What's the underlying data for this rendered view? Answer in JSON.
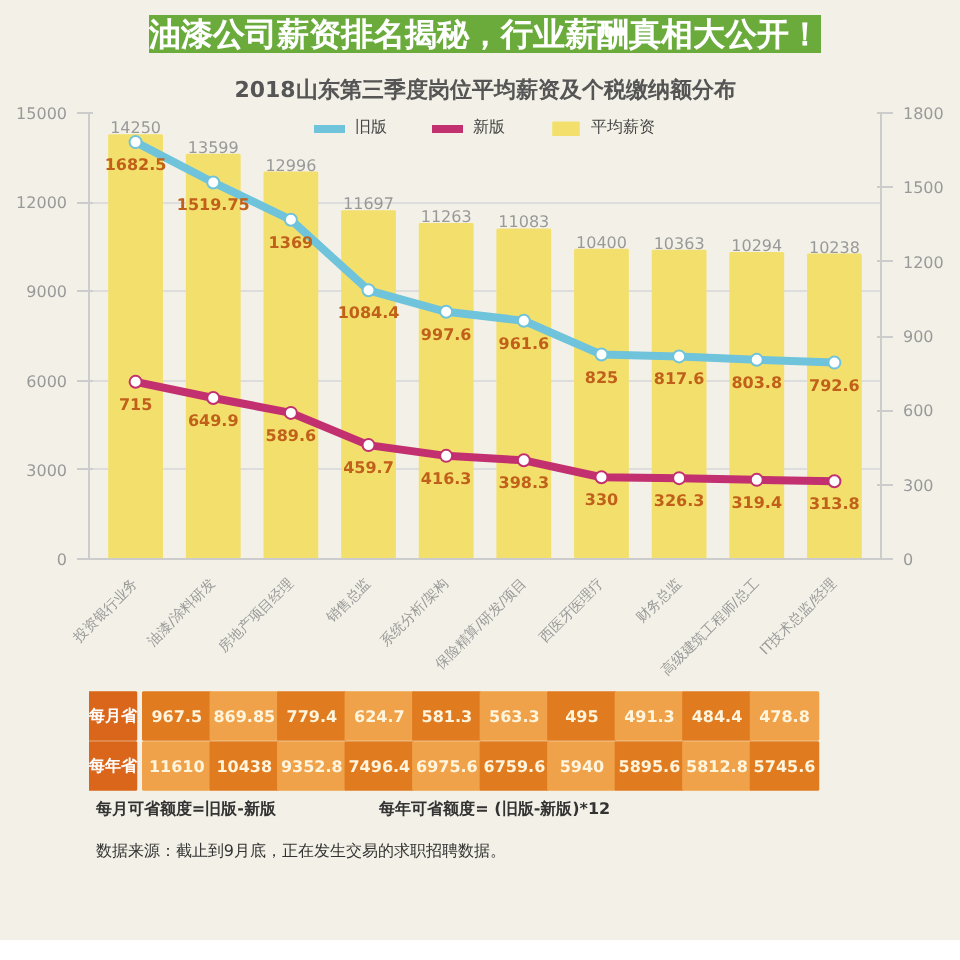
{
  "chart_data": {
    "type": "bar",
    "title": "2018山东第三季度岗位平均薪资及个税缴纳额分布",
    "subtitle": "油漆公司薪资排名揭秘，行业薪酬真相大公开！",
    "categories": [
      "投资银行业务",
      "油漆/涂料研发",
      "房地产项目经理",
      "销售总监",
      "系统分析/架构",
      "保险精算/研发/项目",
      "西医牙医理疗",
      "财务总监",
      "高级建筑工程师/总工",
      "IT技术总监/经理"
    ],
    "series": [
      {
        "name": "平均薪资",
        "color": "#f3e06c",
        "values": [
          14250,
          13599,
          12996,
          11697,
          11263,
          11083,
          10400,
          10363,
          10294,
          10238
        ]
      },
      {
        "name": "旧版",
        "type": "line",
        "axis": "y2",
        "color": "#6fc3da",
        "values": [
          1682.5,
          1519.75,
          1369,
          1084.4,
          997.6,
          961.6,
          825,
          817.6,
          803.8,
          792.6
        ]
      },
      {
        "name": "新版",
        "type": "line",
        "axis": "y2",
        "color": "#c2306f",
        "values": [
          715,
          649.9,
          589.6,
          459.7,
          416.3,
          398.3,
          330,
          326.3,
          319.4,
          313.8
        ]
      }
    ],
    "data_labels": true,
    "marker": "circle",
    "legend": "top",
    "grid": "y",
    "ylim": [
      0,
      15000
    ],
    "yticks": [
      0,
      3000,
      6000,
      9000,
      12000,
      15000
    ],
    "y2lim": [
      0,
      1800
    ],
    "y2ticks": [
      0,
      300,
      600,
      900,
      1200,
      1500,
      1800
    ],
    "annotations": [
      "每月省",
      "967.5",
      "869.85",
      "779.4",
      "624.7",
      "581.3",
      "563.3",
      "495",
      "491.3",
      "484.4",
      "478.8",
      "每年省",
      "11610",
      "10438",
      "9352.8",
      "7496.4",
      "6975.6",
      "6759.6",
      "5940",
      "5895.6",
      "5812.8",
      "5745.6",
      "每月可省额度=旧版-新版",
      "每年可省额度= (旧版-新版)*12",
      "数据来源：截止到9月底，正在发生交易的求职招聘数据。"
    ]
  }
}
